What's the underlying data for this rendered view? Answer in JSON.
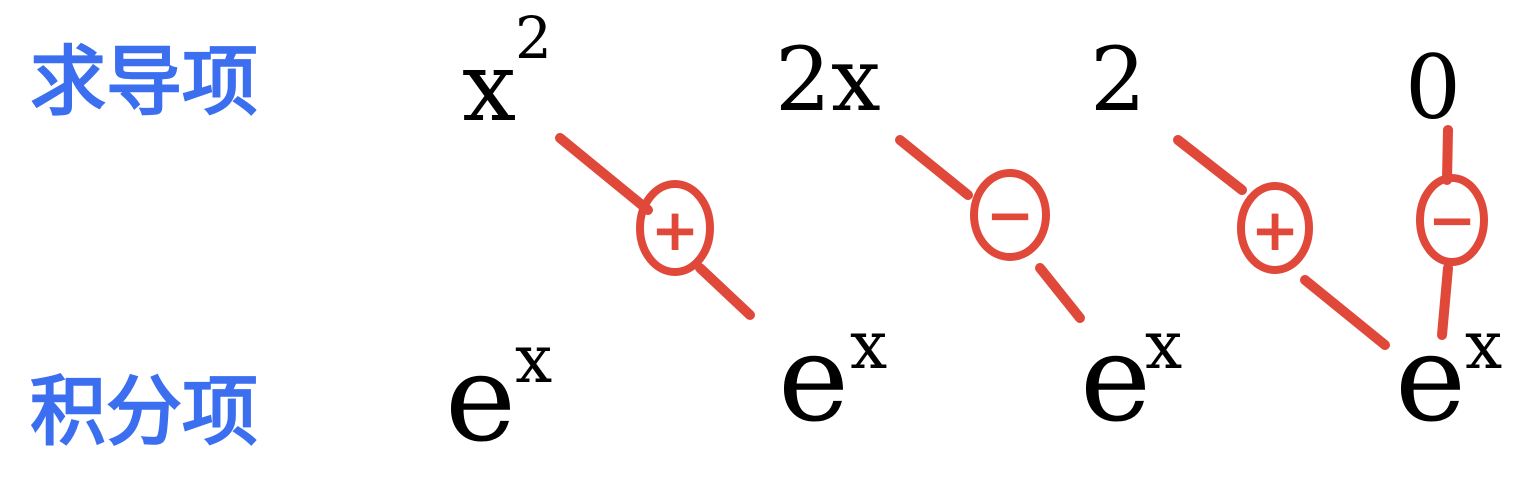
{
  "rows": {
    "derivative_label": "求导项",
    "integral_label": "积分项"
  },
  "derivative_terms": [
    {
      "base": "x",
      "sup": "2"
    },
    {
      "base": "2x",
      "sup": ""
    },
    {
      "base": "2",
      "sup": ""
    },
    {
      "base": "0",
      "sup": ""
    }
  ],
  "integral_terms": [
    {
      "base": "e",
      "sup": "x"
    },
    {
      "base": "e",
      "sup": "x"
    },
    {
      "base": "e",
      "sup": "x"
    },
    {
      "base": "e",
      "sup": "x"
    }
  ],
  "signs": [
    "+",
    "−",
    "+",
    "−"
  ],
  "colors": {
    "label": "#3b6ff0",
    "term": "#000000",
    "connector": "#e0483a"
  }
}
